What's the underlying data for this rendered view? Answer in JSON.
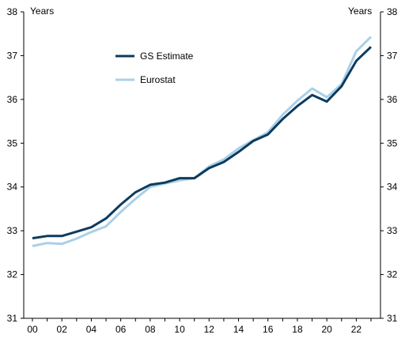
{
  "chart_data": {
    "type": "line",
    "title": "",
    "xlabel": "",
    "ylabel_left": "Years",
    "ylabel_right": "Years",
    "ylim": [
      31,
      38
    ],
    "yticks": [
      31,
      32,
      33,
      34,
      35,
      36,
      37,
      38
    ],
    "xlim": [
      2000,
      2023
    ],
    "x_tick_labels": [
      "00",
      "02",
      "04",
      "06",
      "08",
      "10",
      "12",
      "14",
      "16",
      "18",
      "20",
      "22"
    ],
    "grid": false,
    "legend_position": "upper-left inside plot",
    "x": [
      2000,
      2001,
      2002,
      2003,
      2004,
      2005,
      2006,
      2007,
      2008,
      2009,
      2010,
      2011,
      2012,
      2013,
      2014,
      2015,
      2016,
      2017,
      2018,
      2019,
      2020,
      2021,
      2022,
      2023
    ],
    "series": [
      {
        "name": "GS Estimate",
        "color": "#0d3b5e",
        "values": [
          32.83,
          32.88,
          32.88,
          32.98,
          33.08,
          33.28,
          33.6,
          33.88,
          34.05,
          34.1,
          34.2,
          34.2,
          34.43,
          34.57,
          34.8,
          35.05,
          35.2,
          35.55,
          35.85,
          36.1,
          35.95,
          36.3,
          36.88,
          37.2
        ]
      },
      {
        "name": "Eurostat",
        "color": "#a9d0e8",
        "values": [
          32.65,
          32.72,
          32.7,
          32.82,
          32.97,
          33.1,
          33.43,
          33.73,
          34.0,
          34.08,
          34.15,
          34.2,
          34.47,
          34.63,
          34.88,
          35.07,
          35.25,
          35.65,
          35.97,
          36.25,
          36.05,
          36.35,
          37.1,
          37.43
        ]
      }
    ]
  }
}
